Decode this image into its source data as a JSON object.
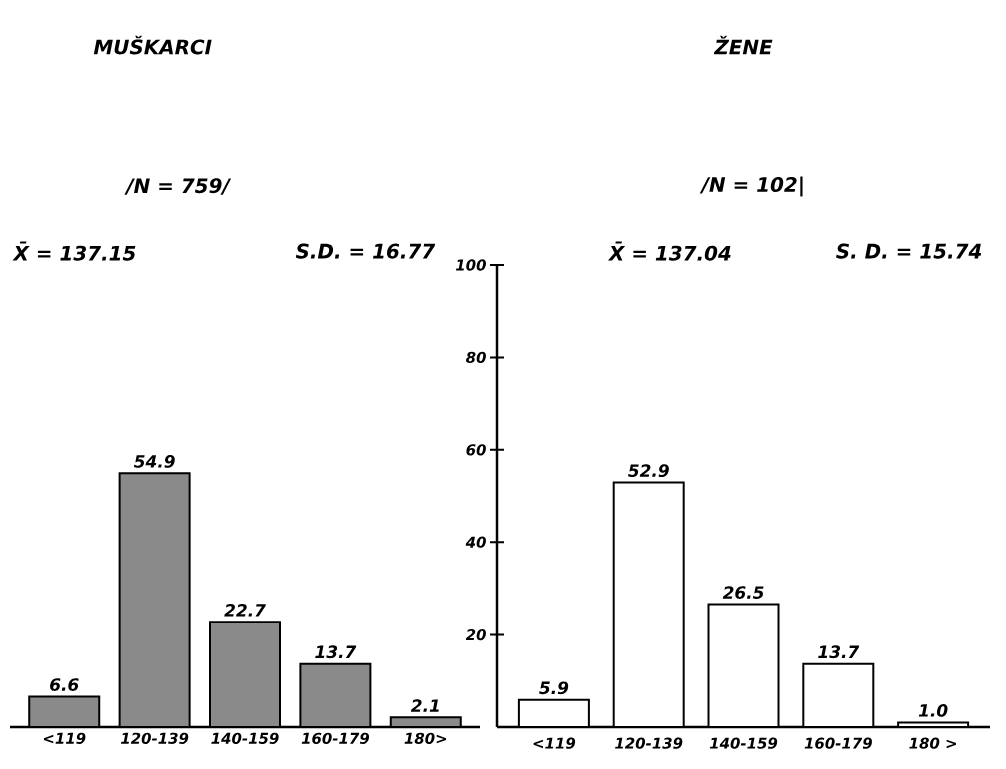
{
  "chart_data": [
    {
      "type": "bar",
      "title": "MUŠKARCI",
      "subtitle": "/N = 759/",
      "annotations": [
        "X̄ = 137.15",
        "S.D. = 16.77"
      ],
      "categories": [
        "<119",
        "120-139",
        "140-159",
        "160-179",
        "180>"
      ],
      "values": [
        6.6,
        54.9,
        22.7,
        13.7,
        2.1
      ],
      "value_labels": [
        "6.6",
        "54.9",
        "22.7",
        "13.7",
        "2.1"
      ],
      "color": "#8a8a8a",
      "ylim": [
        0,
        100
      ],
      "tick_labels": "x"
    },
    {
      "type": "bar",
      "title": "ŽENE",
      "subtitle": "/N = 102|",
      "annotations": [
        "X̄ = 137.04",
        "S. D. = 15.74"
      ],
      "categories": [
        "<119",
        "120-139",
        "140-159",
        "160-179",
        "180 >"
      ],
      "values": [
        5.9,
        52.9,
        26.5,
        13.7,
        1.0
      ],
      "value_labels": [
        "5.9",
        "52.9",
        "26.5",
        "13.7",
        "1.0"
      ],
      "color": "#ffffff",
      "ylim": [
        0,
        100
      ],
      "yticks": [
        20,
        40,
        60,
        80,
        100
      ]
    }
  ]
}
